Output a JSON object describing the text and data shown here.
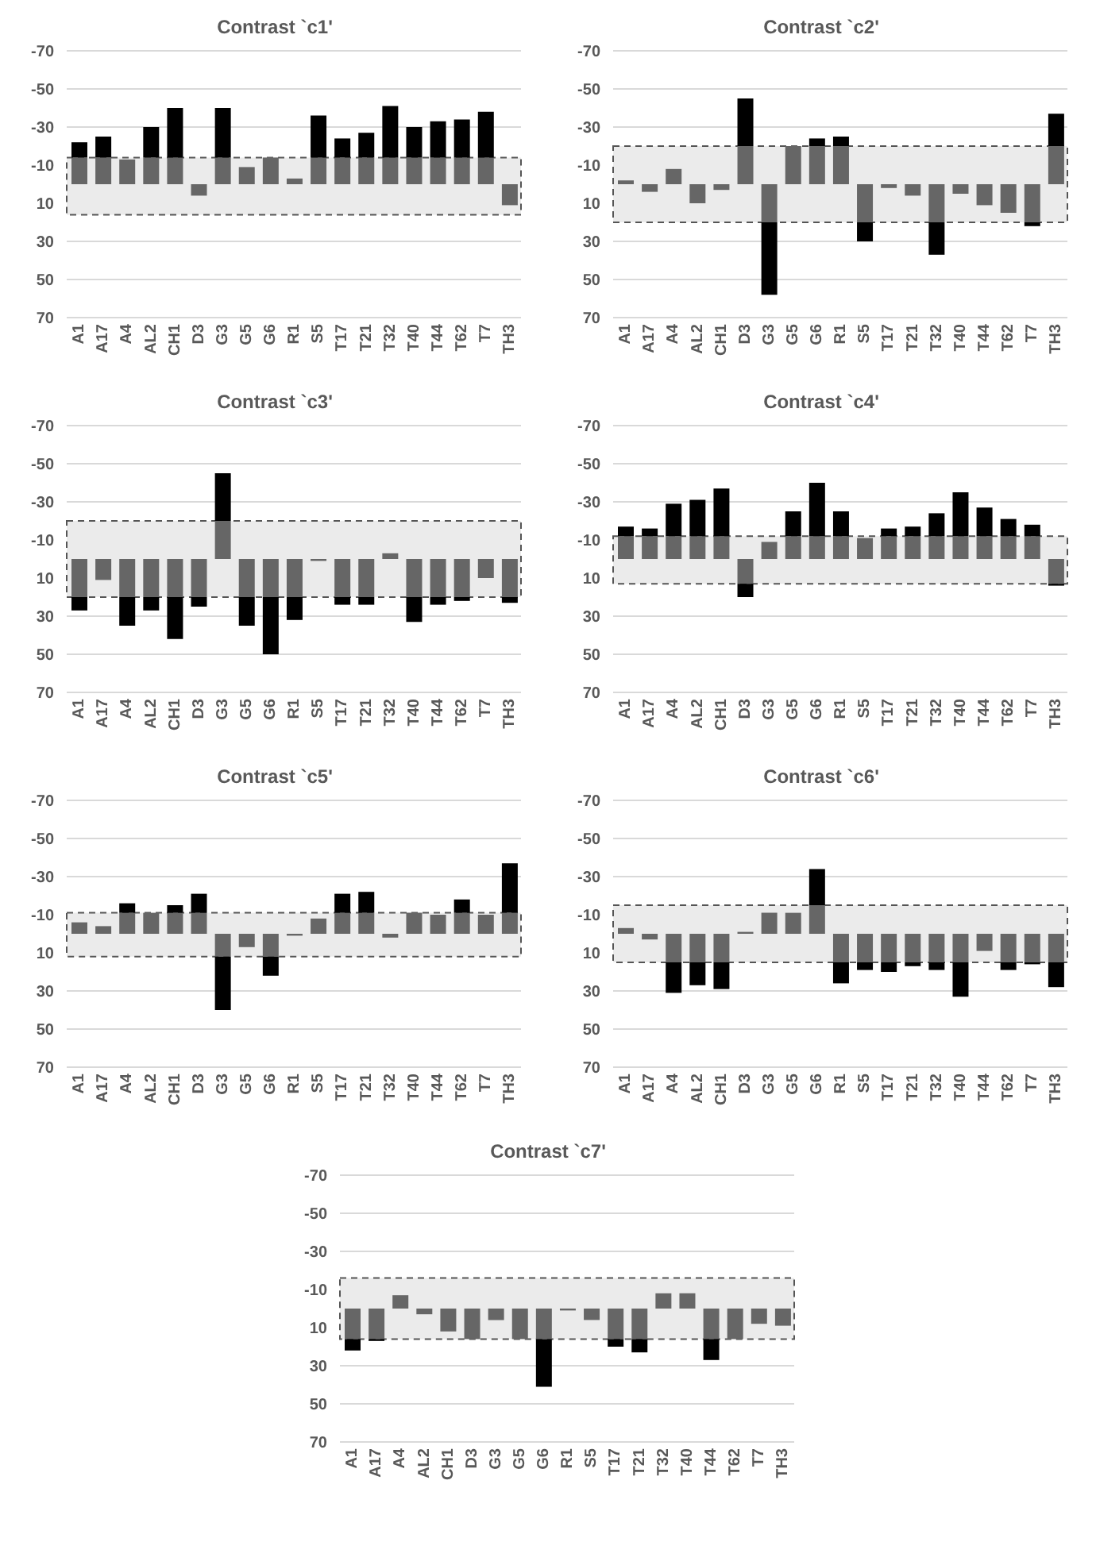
{
  "chart_data": [
    {
      "type": "bar",
      "title": "Contrast `c1'",
      "stacked": true,
      "grid": "y",
      "legend": false,
      "categories": [
        "A1",
        "A17",
        "A4",
        "AL2",
        "CH1",
        "D3",
        "G3",
        "G5",
        "G6",
        "R1",
        "S5",
        "T17",
        "T21",
        "T32",
        "T40",
        "T44",
        "T62",
        "T7",
        "TH3"
      ],
      "ylim": [
        70,
        -70
      ],
      "yticks": [
        -70,
        -50,
        -30,
        -10,
        10,
        30,
        50,
        70
      ],
      "bands": [
        {
          "axis": "y",
          "from": -14,
          "to": 16,
          "color": "#ebebeb"
        }
      ],
      "series": [
        {
          "color": "#666666",
          "values": [
            -14,
            -14,
            -13,
            -14,
            -14,
            6,
            -14,
            -9,
            -14,
            -3,
            -14,
            -14,
            -14,
            -14,
            -14,
            -14,
            -14,
            -14,
            11
          ]
        },
        {
          "color": "#000000",
          "values": [
            -8,
            -11,
            null,
            -16,
            -26,
            null,
            -26,
            null,
            null,
            null,
            -22,
            -10,
            -13,
            -27,
            -16,
            -19,
            -20,
            -24,
            null
          ]
        }
      ]
    },
    {
      "type": "bar",
      "title": "Contrast `c2'",
      "stacked": true,
      "grid": "y",
      "legend": false,
      "categories": [
        "A1",
        "A17",
        "A4",
        "AL2",
        "CH1",
        "D3",
        "G3",
        "G5",
        "G6",
        "R1",
        "S5",
        "T17",
        "T21",
        "T32",
        "T40",
        "T44",
        "T62",
        "T7",
        "TH3"
      ],
      "ylim": [
        70,
        -70
      ],
      "yticks": [
        -70,
        -50,
        -30,
        -10,
        10,
        30,
        50,
        70
      ],
      "bands": [
        {
          "axis": "y",
          "from": -20,
          "to": 20,
          "color": "#ebebeb"
        }
      ],
      "series": [
        {
          "color": "#666666",
          "values": [
            -2,
            4,
            -8,
            10,
            3,
            -20,
            20,
            -20,
            -20,
            -20,
            20,
            2,
            6,
            20,
            5,
            11,
            15,
            20,
            -20
          ]
        },
        {
          "color": "#000000",
          "values": [
            null,
            null,
            null,
            null,
            null,
            -25,
            38,
            null,
            -4,
            -5,
            10,
            null,
            null,
            17,
            null,
            null,
            null,
            2,
            -17
          ]
        }
      ]
    },
    {
      "type": "bar",
      "title": "Contrast `c3'",
      "stacked": true,
      "grid": "y",
      "legend": false,
      "categories": [
        "A1",
        "A17",
        "A4",
        "AL2",
        "CH1",
        "D3",
        "G3",
        "G5",
        "G6",
        "R1",
        "S5",
        "T17",
        "T21",
        "T32",
        "T40",
        "T44",
        "T62",
        "T7",
        "TH3"
      ],
      "ylim": [
        70,
        -70
      ],
      "yticks": [
        -70,
        -50,
        -30,
        -10,
        10,
        30,
        50,
        70
      ],
      "bands": [
        {
          "axis": "y",
          "from": -20,
          "to": 20,
          "color": "#ebebeb"
        }
      ],
      "series": [
        {
          "color": "#666666",
          "values": [
            20,
            11,
            20,
            20,
            20,
            20,
            -20,
            20,
            20,
            20,
            1,
            20,
            20,
            -3,
            20,
            20,
            20,
            10,
            20
          ]
        },
        {
          "color": "#000000",
          "values": [
            7,
            null,
            15,
            7,
            22,
            5,
            -25,
            15,
            30,
            12,
            null,
            4,
            4,
            null,
            13,
            4,
            2,
            null,
            3
          ]
        }
      ]
    },
    {
      "type": "bar",
      "title": "Contrast `c4'",
      "stacked": true,
      "grid": "y",
      "legend": false,
      "categories": [
        "A1",
        "A17",
        "A4",
        "AL2",
        "CH1",
        "D3",
        "G3",
        "G5",
        "G6",
        "R1",
        "S5",
        "T17",
        "T21",
        "T32",
        "T40",
        "T44",
        "T62",
        "T7",
        "TH3"
      ],
      "ylim": [
        70,
        -70
      ],
      "yticks": [
        -70,
        -50,
        -30,
        -10,
        10,
        30,
        50,
        70
      ],
      "bands": [
        {
          "axis": "y",
          "from": -12,
          "to": 13,
          "color": "#ebebeb"
        }
      ],
      "series": [
        {
          "color": "#666666",
          "values": [
            -12,
            -12,
            -12,
            -12,
            -12,
            13,
            -9,
            -12,
            -12,
            -12,
            -11,
            -12,
            -12,
            -12,
            -12,
            -12,
            -12,
            -12,
            13
          ]
        },
        {
          "color": "#000000",
          "values": [
            -5,
            -4,
            -17,
            -19,
            -25,
            7,
            null,
            -13,
            -28,
            -13,
            null,
            -4,
            -5,
            -12,
            -23,
            -15,
            -9,
            -6,
            1
          ]
        }
      ]
    },
    {
      "type": "bar",
      "title": "Contrast `c5'",
      "stacked": true,
      "grid": "y",
      "legend": false,
      "categories": [
        "A1",
        "A17",
        "A4",
        "AL2",
        "CH1",
        "D3",
        "G3",
        "G5",
        "G6",
        "R1",
        "S5",
        "T17",
        "T21",
        "T32",
        "T40",
        "T44",
        "T62",
        "T7",
        "TH3"
      ],
      "ylim": [
        70,
        -70
      ],
      "yticks": [
        -70,
        -50,
        -30,
        -10,
        10,
        30,
        50,
        70
      ],
      "bands": [
        {
          "axis": "y",
          "from": -11,
          "to": 12,
          "color": "#ebebeb"
        }
      ],
      "series": [
        {
          "color": "#666666",
          "values": [
            -6,
            -4,
            -11,
            -11,
            -11,
            -11,
            12,
            7,
            12,
            1,
            -8,
            -11,
            -11,
            2,
            -11,
            -10,
            -11,
            -10,
            -11
          ]
        },
        {
          "color": "#000000",
          "values": [
            null,
            null,
            -5,
            null,
            -4,
            -10,
            28,
            null,
            10,
            null,
            null,
            -10,
            -11,
            null,
            null,
            null,
            -7,
            null,
            -26
          ]
        }
      ]
    },
    {
      "type": "bar",
      "title": "Contrast `c6'",
      "stacked": true,
      "grid": "y",
      "legend": false,
      "categories": [
        "A1",
        "A17",
        "A4",
        "AL2",
        "CH1",
        "D3",
        "G3",
        "G5",
        "G6",
        "R1",
        "S5",
        "T17",
        "T21",
        "T32",
        "T40",
        "T44",
        "T62",
        "T7",
        "TH3"
      ],
      "ylim": [
        70,
        -70
      ],
      "yticks": [
        -70,
        -50,
        -30,
        -10,
        10,
        30,
        50,
        70
      ],
      "bands": [
        {
          "axis": "y",
          "from": -15,
          "to": 15,
          "color": "#ebebeb"
        }
      ],
      "series": [
        {
          "color": "#666666",
          "values": [
            -3,
            3,
            15,
            15,
            15,
            -1,
            -11,
            -11,
            -15,
            15,
            15,
            15,
            15,
            15,
            15,
            9,
            15,
            15,
            15
          ]
        },
        {
          "color": "#000000",
          "values": [
            null,
            null,
            16,
            12,
            14,
            null,
            null,
            null,
            -19,
            11,
            4,
            5,
            2,
            4,
            18,
            null,
            4,
            1,
            13
          ]
        }
      ]
    },
    {
      "type": "bar",
      "title": "Contrast `c7'",
      "stacked": true,
      "grid": "y",
      "legend": false,
      "categories": [
        "A1",
        "A17",
        "A4",
        "AL2",
        "CH1",
        "D3",
        "G3",
        "G5",
        "G6",
        "R1",
        "S5",
        "T17",
        "T21",
        "T32",
        "T40",
        "T44",
        "T62",
        "T7",
        "TH3"
      ],
      "ylim": [
        70,
        -70
      ],
      "yticks": [
        -70,
        -50,
        -30,
        -10,
        10,
        30,
        50,
        70
      ],
      "bands": [
        {
          "axis": "y",
          "from": -16,
          "to": 16,
          "color": "#ebebeb"
        }
      ],
      "series": [
        {
          "color": "#666666",
          "values": [
            16,
            16,
            -7,
            3,
            12,
            16,
            6,
            16,
            16,
            1,
            6,
            16,
            16,
            -8,
            -8,
            16,
            16,
            8,
            9
          ]
        },
        {
          "color": "#000000",
          "values": [
            6,
            1,
            null,
            null,
            null,
            null,
            null,
            null,
            25,
            null,
            null,
            4,
            7,
            null,
            null,
            11,
            null,
            null,
            null
          ]
        }
      ]
    }
  ]
}
